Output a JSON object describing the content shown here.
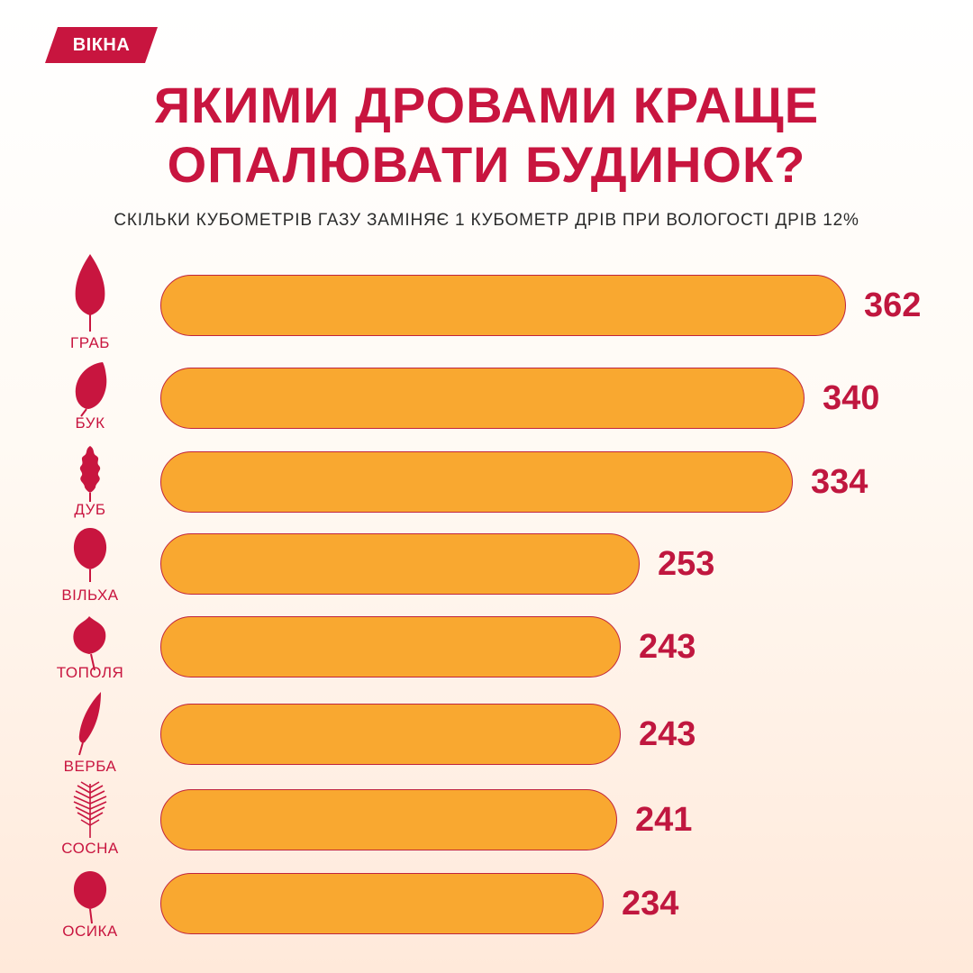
{
  "brand": {
    "name": "ВІКНА",
    "color": "#c8153f"
  },
  "header": {
    "title_line1": "ЯКИМИ ДРОВАМИ КРАЩЕ",
    "title_line2": "ОПАЛЮВАТИ БУДИНОК?",
    "subtitle": "СКІЛЬКИ КУБОМЕТРІВ ГАЗУ ЗАМІНЯЄ 1 КУБОМЕТР ДРІВ ПРИ ВОЛОГОСТІ ДРІВ 12%"
  },
  "colors": {
    "bar_fill": "#f9a830",
    "bar_stroke": "#c0243d",
    "accent": "#c8153f"
  },
  "chart_data": {
    "type": "bar",
    "orientation": "horizontal",
    "title": "ЯКИМИ ДРОВАМИ КРАЩЕ ОПАЛЮВАТИ БУДИНОК?",
    "subtitle": "СКІЛЬКИ КУБОМЕТРІВ ГАЗУ ЗАМІНЯЄ 1 КУБОМЕТР ДРІВ ПРИ ВОЛОГОСТІ ДРІВ 12%",
    "categories": [
      "ГРАБ",
      "БУК",
      "ДУБ",
      "ВІЛЬХА",
      "ТОПОЛЯ",
      "ВЕРБА",
      "СОСНА",
      "ОСИКА"
    ],
    "values": [
      362,
      340,
      334,
      253,
      243,
      243,
      241,
      234
    ],
    "icons": [
      "hornbeam-leaf-icon",
      "beech-leaf-icon",
      "oak-leaf-icon",
      "alder-leaf-icon",
      "poplar-leaf-icon",
      "willow-leaf-icon",
      "pine-branch-icon",
      "aspen-leaf-icon"
    ],
    "data_labels": true,
    "axes_visible": false,
    "grid": false,
    "legend": false
  }
}
